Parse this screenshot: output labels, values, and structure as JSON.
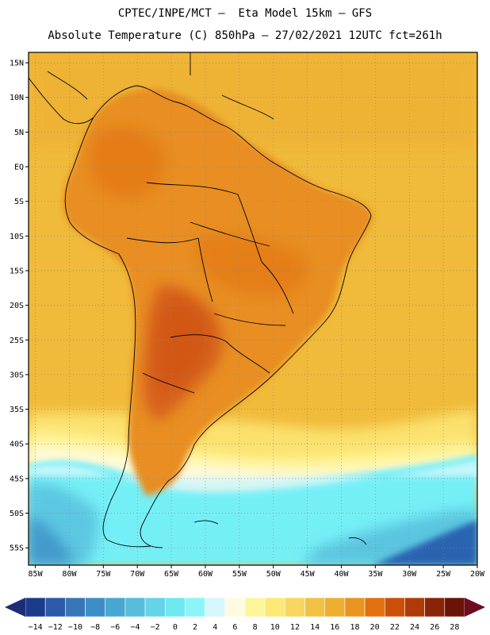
{
  "header": {
    "line1": "CPTEC/INPE/MCT –  Eta Model 15km – GFS",
    "line2": "Absolute Temperature (C) 850hPa – 27/02/2021 12UTC fct=261h"
  },
  "axes": {
    "lat_labels": [
      "15N",
      "10N",
      "5N",
      "EQ",
      "5S",
      "10S",
      "15S",
      "20S",
      "25S",
      "30S",
      "35S",
      "40S",
      "45S",
      "50S",
      "55S"
    ],
    "lon_labels": [
      "85W",
      "80W",
      "75W",
      "70W",
      "65W",
      "60W",
      "55W",
      "50W",
      "45W",
      "40W",
      "35W",
      "30W",
      "25W",
      "20W"
    ],
    "lat_range": [
      16.5,
      -57.5
    ],
    "lon_range": [
      -86.0,
      -20.0
    ]
  },
  "colorbar": {
    "labels": [
      "−14",
      "−12",
      "−10",
      "−8",
      "−6",
      "−4",
      "−2",
      "0",
      "2",
      "4",
      "6",
      "8",
      "10",
      "12",
      "14",
      "16",
      "18",
      "20",
      "22",
      "24",
      "26",
      "28"
    ],
    "colors": [
      "#1b3b8c",
      "#2a5aa8",
      "#3777b8",
      "#3d8ec6",
      "#48a6d2",
      "#56bedc",
      "#64d4e6",
      "#70e8f0",
      "#8cf5fa",
      "#d6f7fb",
      "#fffbe0",
      "#fff59a",
      "#fde878",
      "#f8d660",
      "#f2c246",
      "#eeae30",
      "#ea9420",
      "#e27010",
      "#cc5008",
      "#b03a08",
      "#8a2408",
      "#6a1408"
    ],
    "under_color": "#1c2d78",
    "over_color": "#6e0c20"
  },
  "map": {
    "ocean_base_color": "#f0ba3a",
    "land_warm_color": "#e88e22",
    "land_hot_color": "#d8621a",
    "cold_band_color": "#74eff6",
    "deep_cold_color": "#2c64b0"
  }
}
